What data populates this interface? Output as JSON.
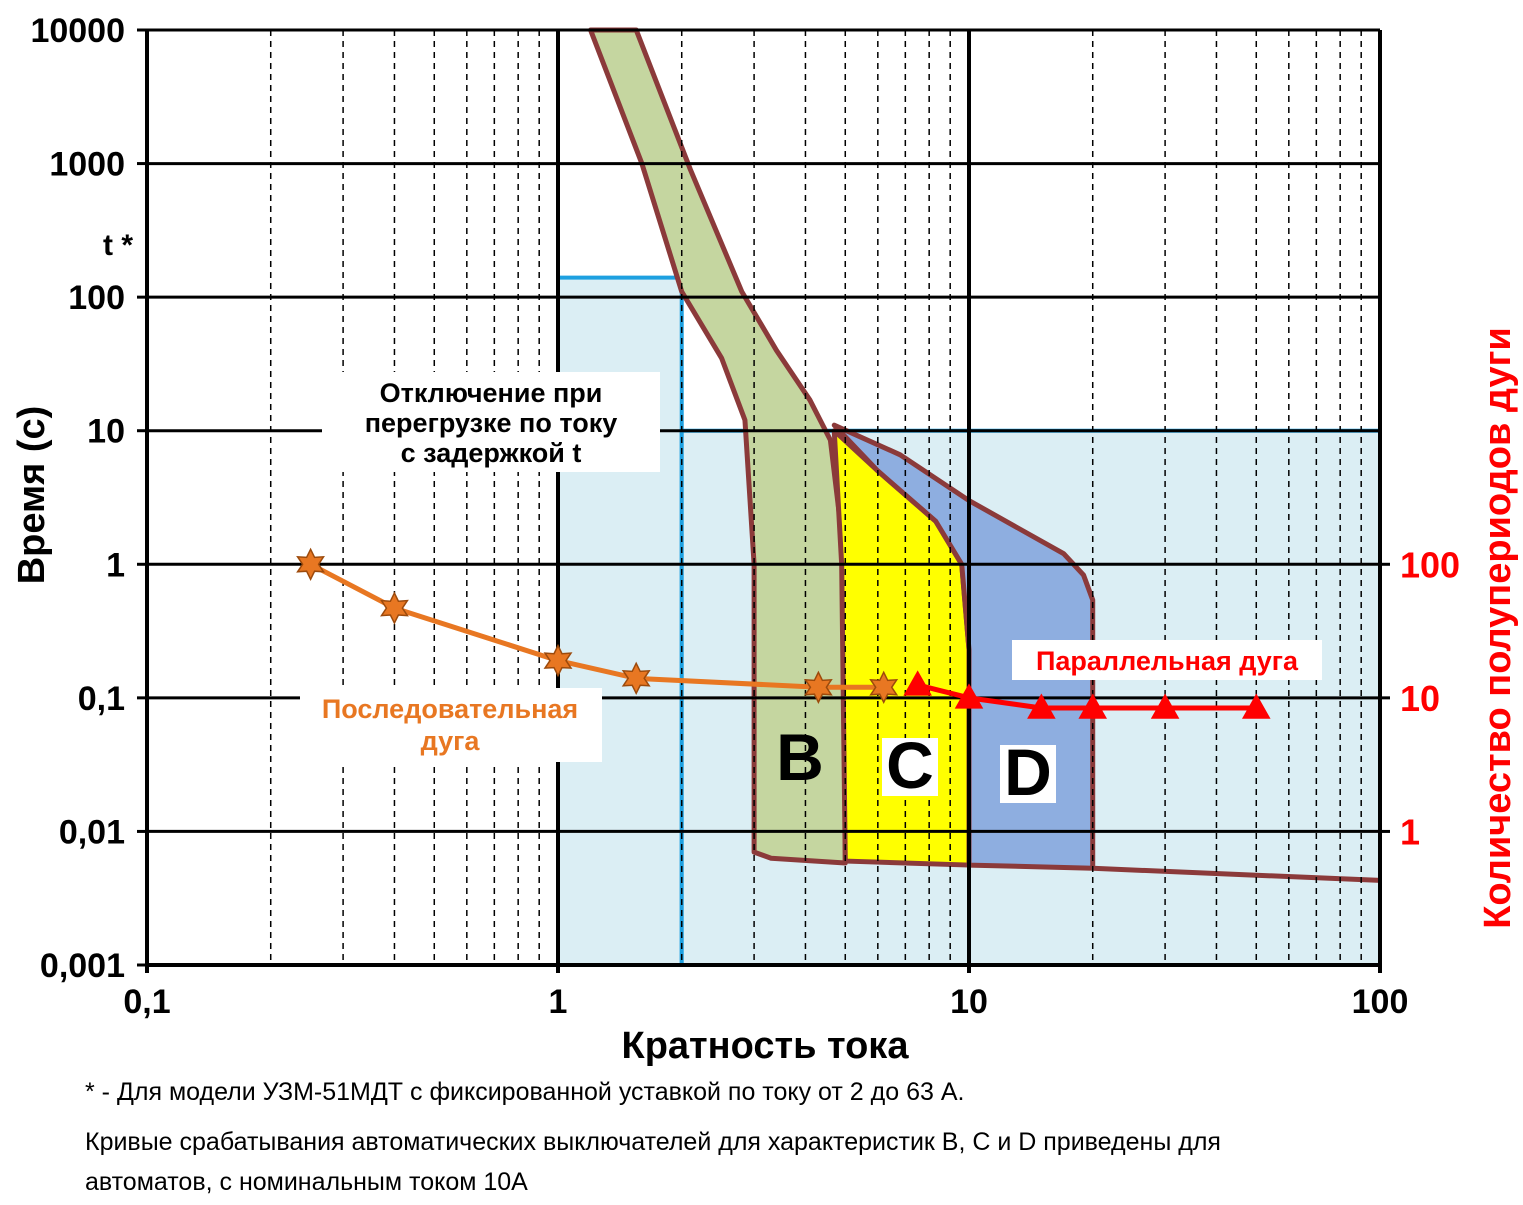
{
  "chart_data": {
    "type": "line",
    "x_scale": "log",
    "y_scale": "log",
    "xlim": [
      0.1,
      100
    ],
    "ylim": [
      0.001,
      10000
    ],
    "y2lim": [
      0.1,
      1000000
    ],
    "xticks": [
      {
        "value": 0.1,
        "label": "0,1"
      },
      1,
      10,
      100
    ],
    "xminor": [
      0.2,
      0.3,
      0.4,
      0.5,
      0.6,
      0.7,
      0.8,
      0.9,
      2,
      3,
      4,
      5,
      6,
      7,
      8,
      9,
      20,
      30,
      40,
      50,
      60,
      70,
      80,
      90
    ],
    "yticks": [
      {
        "value": 0.001,
        "label": "0,001"
      },
      {
        "value": 0.01,
        "label": "0,01"
      },
      {
        "value": 0.1,
        "label": "0,1"
      },
      1,
      10,
      100,
      1000,
      10000
    ],
    "y2ticks": [
      1,
      10,
      100
    ],
    "grid": true,
    "x_label": "Кратность тока",
    "y_label": "Время (с)",
    "y2_label": "Количество полупериодов дуги",
    "y_marker": "t *",
    "regions": [
      {
        "x": [
          1,
          2
        ],
        "y": [
          0.001,
          140
        ],
        "color": "#dbeef4",
        "edge": "#1ea0e0"
      },
      {
        "x": [
          2,
          100
        ],
        "y": [
          0.001,
          10
        ],
        "color": "#dbeef4",
        "edge": "#1ea0e0"
      }
    ],
    "region_note": [
      "Отключение при",
      "перегрузке по току",
      "с задержкой t"
    ],
    "outline_color": "#8b3a3a",
    "zones": [
      {
        "name": "B",
        "color": "#c5d6a0",
        "x": [
          1.2,
          1.6,
          2,
          2.5,
          2.85,
          3,
          3,
          3.3,
          5,
          5,
          4.6,
          4.1,
          3.4,
          2.8,
          2.1,
          1.55
        ],
        "values": [
          10000,
          1000,
          110,
          35,
          12,
          1,
          0.007,
          0.0063,
          0.0058,
          1,
          8.5,
          17,
          40,
          110,
          900,
          10000
        ]
      },
      {
        "name": "C",
        "color": "#ffff00",
        "x": [
          4.7,
          6,
          8.3,
          9.6,
          10,
          10,
          5,
          4.9
        ],
        "values": [
          10,
          5,
          2.1,
          1,
          0.23,
          0.0056,
          0.006,
          1
        ]
      },
      {
        "name": "D",
        "color": "#8eaee0",
        "x": [
          4.7,
          6.8,
          10,
          17,
          19,
          20,
          20,
          10,
          10,
          9.6,
          8.3,
          6
        ],
        "values": [
          11,
          6.6,
          3,
          1.2,
          0.83,
          0.54,
          0.0053,
          0.0056,
          0.23,
          1,
          2.1,
          5
        ]
      }
    ],
    "tail": {
      "x": [
        20,
        50,
        100
      ],
      "values": [
        0.0053,
        0.0047,
        0.0043
      ]
    },
    "series": [
      {
        "name_lines": [
          "Последовательная",
          "дуга"
        ],
        "color": "#e87722",
        "marker": "star",
        "x": [
          0.25,
          0.4,
          1,
          1.55,
          4.3,
          6.2
        ],
        "values": [
          1,
          0.47,
          0.19,
          0.14,
          0.12,
          0.12
        ]
      },
      {
        "name": "Параллельная дуга",
        "color": "#ff0000",
        "marker": "triangle",
        "axis": "y2",
        "x": [
          7.5,
          10,
          15,
          20,
          30,
          50
        ],
        "values": [
          12.5,
          10,
          8.4,
          8.4,
          8.4,
          8.4
        ]
      }
    ],
    "notes": [
      "* - Для модели УЗМ-51МДТ с фиксированной уставкой по току от 2 до 63 А.",
      "Кривые срабатывания автоматических выключателей для характеристик B, C и D приведены для",
      "автоматов, с номинальным током 10А"
    ]
  }
}
